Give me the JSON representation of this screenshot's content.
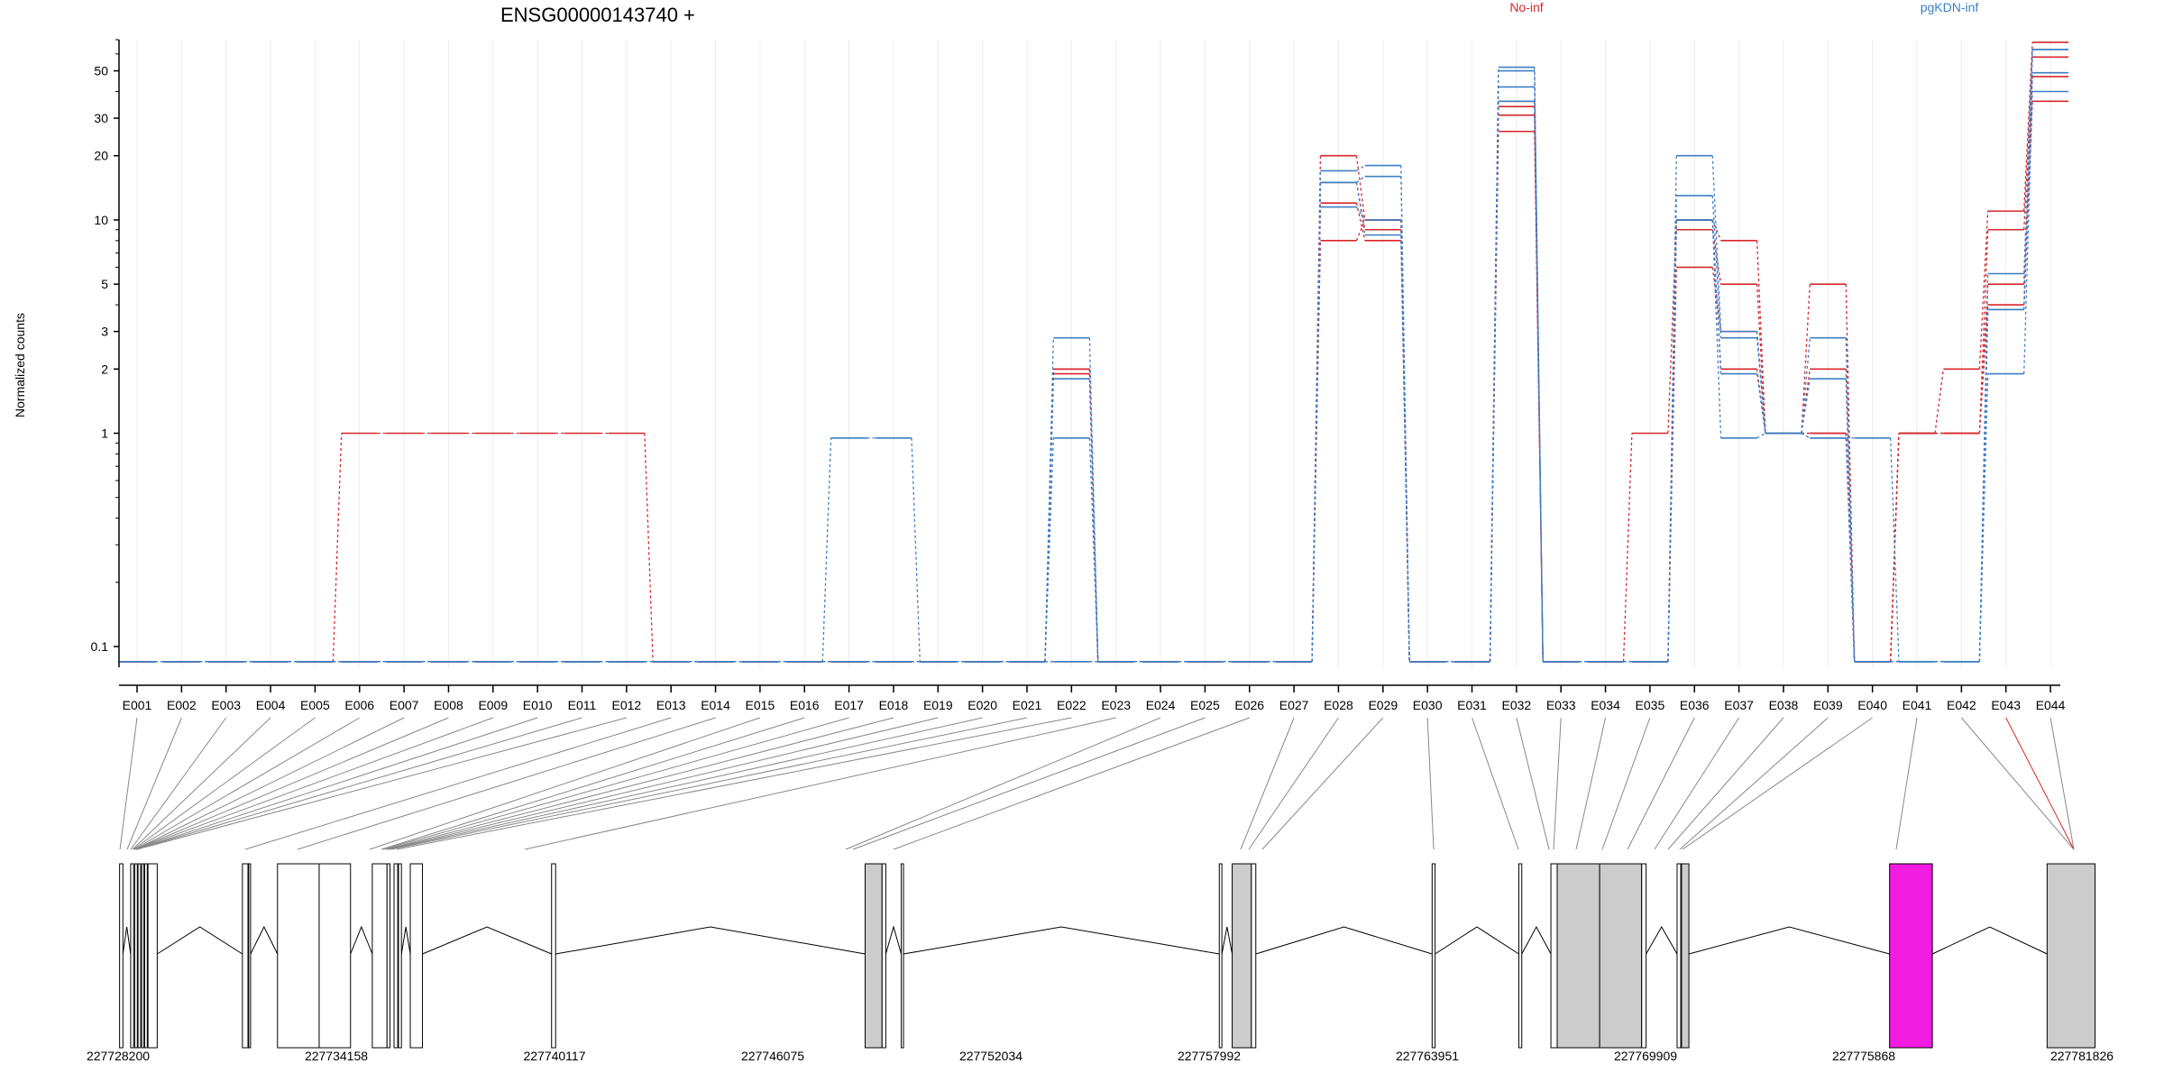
{
  "chart_data": {
    "type": "line",
    "title": "ENSG00000143740 +",
    "ylabel": "Normalized counts",
    "xlabel": "",
    "y_scale": "log",
    "ylim": [
      0.08,
      70
    ],
    "y_ticks": [
      0.1,
      1,
      2,
      3,
      5,
      10,
      20,
      30,
      50
    ],
    "grid": "vertical",
    "legend": "top-right",
    "colors": {
      "No-inf": "#d7262b",
      "pgKDN-inf": "#3d7fc4"
    },
    "exons": [
      "E001",
      "E002",
      "E003",
      "E004",
      "E005",
      "E006",
      "E007",
      "E008",
      "E009",
      "E010",
      "E011",
      "E012",
      "E013",
      "E014",
      "E015",
      "E016",
      "E017",
      "E018",
      "E019",
      "E020",
      "E021",
      "E022",
      "E023",
      "E024",
      "E025",
      "E026",
      "E027",
      "E028",
      "E029",
      "E030",
      "E031",
      "E032",
      "E033",
      "E034",
      "E035",
      "E036",
      "E037",
      "E038",
      "E039",
      "E040",
      "E041",
      "E042",
      "E043",
      "E044"
    ],
    "floor_value": 0.085,
    "series": [
      {
        "name": "No-inf",
        "group": "No-inf",
        "values": [
          0.085,
          0.085,
          0.085,
          0.085,
          0.085,
          1,
          1,
          1,
          1,
          1,
          1,
          1,
          0.085,
          0.085,
          0.085,
          0.085,
          0.085,
          0.085,
          0.085,
          0.085,
          0.085,
          2,
          0.085,
          0.085,
          0.085,
          0.085,
          0.085,
          20,
          10,
          0.085,
          0.085,
          34,
          0.085,
          0.085,
          1,
          10,
          8,
          1,
          5,
          0.085,
          1,
          2,
          11,
          68
        ]
      },
      {
        "name": "No-inf",
        "group": "No-inf",
        "values": [
          0.085,
          0.085,
          0.085,
          0.085,
          0.085,
          0.085,
          0.085,
          0.085,
          0.085,
          0.085,
          0.085,
          0.085,
          0.085,
          0.085,
          0.085,
          0.085,
          0.085,
          0.085,
          0.085,
          0.085,
          0.085,
          2,
          0.085,
          0.085,
          0.085,
          0.085,
          0.085,
          15,
          9,
          0.085,
          0.085,
          31,
          0.085,
          0.085,
          0.085,
          9,
          5,
          1,
          2,
          0.085,
          1,
          1,
          9,
          58
        ]
      },
      {
        "name": "No-inf",
        "group": "No-inf",
        "values": [
          0.085,
          0.085,
          0.085,
          0.085,
          0.085,
          0.085,
          0.085,
          0.085,
          0.085,
          0.085,
          0.085,
          0.085,
          0.085,
          0.085,
          0.085,
          0.085,
          0.085,
          0.085,
          0.085,
          0.085,
          0.085,
          1.9,
          0.085,
          0.085,
          0.085,
          0.085,
          0.085,
          12,
          8,
          0.085,
          0.085,
          26,
          0.085,
          0.085,
          0.085,
          6,
          3,
          1,
          1,
          0.085,
          1,
          1,
          5,
          47
        ]
      },
      {
        "name": "No-inf",
        "group": "No-inf",
        "values": [
          0.085,
          0.085,
          0.085,
          0.085,
          0.085,
          0.085,
          0.085,
          0.085,
          0.085,
          0.085,
          0.085,
          0.085,
          0.085,
          0.085,
          0.085,
          0.085,
          0.085,
          0.085,
          0.085,
          0.085,
          0.085,
          0.085,
          0.085,
          0.085,
          0.085,
          0.085,
          0.085,
          8,
          10,
          0.085,
          0.085,
          36,
          0.085,
          0.085,
          0.085,
          10,
          2,
          1,
          1,
          0.085,
          1,
          1,
          4,
          36
        ]
      },
      {
        "name": "pgKDN-inf",
        "group": "pgKDN-inf",
        "values": [
          0.085,
          0.085,
          0.085,
          0.085,
          0.085,
          0.085,
          0.085,
          0.085,
          0.085,
          0.085,
          0.085,
          0.085,
          0.085,
          0.085,
          0.085,
          0.085,
          0.95,
          0.95,
          0.085,
          0.085,
          0.085,
          2.8,
          0.085,
          0.085,
          0.085,
          0.085,
          0.085,
          17,
          18,
          0.085,
          0.085,
          52,
          0.085,
          0.085,
          0.085,
          20,
          3,
          1,
          2.8,
          0.085,
          0.085,
          0.085,
          5.6,
          63
        ]
      },
      {
        "name": "pgKDN-inf",
        "group": "pgKDN-inf",
        "values": [
          0.085,
          0.085,
          0.085,
          0.085,
          0.085,
          0.085,
          0.085,
          0.085,
          0.085,
          0.085,
          0.085,
          0.085,
          0.085,
          0.085,
          0.085,
          0.085,
          0.085,
          0.085,
          0.085,
          0.085,
          0.085,
          1.8,
          0.085,
          0.085,
          0.085,
          0.085,
          0.085,
          15,
          16,
          0.085,
          0.085,
          50,
          0.085,
          0.085,
          0.085,
          13,
          2.8,
          1,
          1.8,
          0.085,
          0.085,
          0.085,
          3.8,
          63
        ]
      },
      {
        "name": "pgKDN-inf",
        "group": "pgKDN-inf",
        "values": [
          0.085,
          0.085,
          0.085,
          0.085,
          0.085,
          0.085,
          0.085,
          0.085,
          0.085,
          0.085,
          0.085,
          0.085,
          0.085,
          0.085,
          0.085,
          0.085,
          0.085,
          0.085,
          0.085,
          0.085,
          0.085,
          0.95,
          0.085,
          0.085,
          0.085,
          0.085,
          0.085,
          11.5,
          10,
          0.085,
          0.085,
          42,
          0.085,
          0.085,
          0.085,
          10,
          1.9,
          1,
          0.95,
          0.95,
          0.085,
          0.085,
          3.8,
          49
        ]
      },
      {
        "name": "pgKDN-inf",
        "group": "pgKDN-inf",
        "values": [
          0.085,
          0.085,
          0.085,
          0.085,
          0.085,
          0.085,
          0.085,
          0.085,
          0.085,
          0.085,
          0.085,
          0.085,
          0.085,
          0.085,
          0.085,
          0.085,
          0.085,
          0.085,
          0.085,
          0.085,
          0.085,
          0.085,
          0.085,
          0.085,
          0.085,
          0.085,
          0.085,
          15,
          8.5,
          0.085,
          0.085,
          36,
          0.085,
          0.085,
          0.085,
          10,
          0.95,
          1,
          0.95,
          0.085,
          0.085,
          0.085,
          1.9,
          40
        ]
      }
    ],
    "gene_model": {
      "coordinate_ticks": [
        "227728200",
        "227734158",
        "227740117",
        "227746075",
        "227752034",
        "227757992",
        "227763951",
        "227769909",
        "227775868",
        "227781826"
      ],
      "coord_min": 227728200,
      "coord_max": 227781826,
      "highlight_exon": "E043",
      "highlight_color": "#f21be0",
      "exon_fill": "#cccccc",
      "blocks": [
        {
          "start": 227728240,
          "end": 227728330,
          "fill": "none"
        },
        {
          "start": 227728540,
          "end": 227728620,
          "fill": "none"
        },
        {
          "start": 227728650,
          "end": 227728720,
          "fill": "none"
        },
        {
          "start": 227728740,
          "end": 227728810,
          "fill": "none"
        },
        {
          "start": 227728840,
          "end": 227728900,
          "fill": "none"
        },
        {
          "start": 227728920,
          "end": 227728990,
          "fill": "none"
        },
        {
          "start": 227729010,
          "end": 227729260,
          "fill": "none"
        },
        {
          "start": 227731570,
          "end": 227731720,
          "fill": "none"
        },
        {
          "start": 227731740,
          "end": 227731790,
          "fill": "none"
        },
        {
          "start": 227732520,
          "end": 227733650,
          "fill": "none"
        },
        {
          "start": 227733650,
          "end": 227734500,
          "fill": "none"
        },
        {
          "start": 227735090,
          "end": 227735490,
          "fill": "none"
        },
        {
          "start": 227735490,
          "end": 227735570,
          "fill": "none"
        },
        {
          "start": 227735680,
          "end": 227735780,
          "fill": "none"
        },
        {
          "start": 227735800,
          "end": 227735880,
          "fill": "none"
        },
        {
          "start": 227736120,
          "end": 227736450,
          "fill": "none"
        },
        {
          "start": 227739950,
          "end": 227740060,
          "fill": "none"
        },
        {
          "start": 227748450,
          "end": 227748910,
          "fill": "gray"
        },
        {
          "start": 227748910,
          "end": 227749010,
          "fill": "none"
        },
        {
          "start": 227749430,
          "end": 227749490,
          "fill": "none"
        },
        {
          "start": 227758050,
          "end": 227758120,
          "fill": "none"
        },
        {
          "start": 227758400,
          "end": 227758920,
          "fill": "gray"
        },
        {
          "start": 227758920,
          "end": 227759040,
          "fill": "none"
        },
        {
          "start": 227763820,
          "end": 227763900,
          "fill": "none"
        },
        {
          "start": 227766170,
          "end": 227766250,
          "fill": "none"
        },
        {
          "start": 227767040,
          "end": 227767210,
          "fill": "none"
        },
        {
          "start": 227767210,
          "end": 227768360,
          "fill": "gray"
        },
        {
          "start": 227768360,
          "end": 227769500,
          "fill": "gray"
        },
        {
          "start": 227769500,
          "end": 227769620,
          "fill": "none"
        },
        {
          "start": 227770460,
          "end": 227770560,
          "fill": "none"
        },
        {
          "start": 227770580,
          "end": 227770780,
          "fill": "gray"
        },
        {
          "start": 227776220,
          "end": 227777380,
          "fill": "magenta"
        },
        {
          "start": 227780490,
          "end": 227781790,
          "fill": "gray"
        }
      ]
    }
  }
}
